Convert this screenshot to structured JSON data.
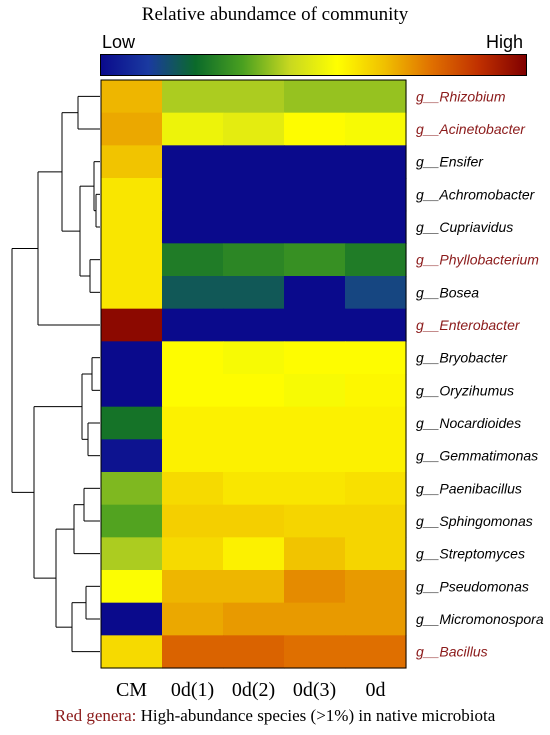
{
  "chart_data": {
    "type": "heatmap",
    "title": "Relative abundamce of community",
    "color_scale": {
      "low_label": "Low",
      "high_label": "High",
      "stops": [
        "#0a0a8c",
        "#1a3aa0",
        "#0b6a2a",
        "#4aa020",
        "#c8d820",
        "#ffff00",
        "#f0c000",
        "#e07000",
        "#c03000",
        "#800000"
      ]
    },
    "columns": [
      "CM",
      "0d(1)",
      "0d(2)",
      "0d(3)",
      "0d"
    ],
    "rows": [
      {
        "genus": "g__Rhizobium",
        "highlight": true,
        "values": [
          0.68,
          0.42,
          0.42,
          0.4,
          0.4
        ]
      },
      {
        "genus": "g__Acinetobacter",
        "highlight": true,
        "values": [
          0.7,
          0.52,
          0.5,
          0.56,
          0.54
        ]
      },
      {
        "genus": "g__Ensifer",
        "highlight": false,
        "values": [
          0.66,
          0.0,
          0.0,
          0.0,
          0.0
        ]
      },
      {
        "genus": "g__Achromobacter",
        "highlight": false,
        "values": [
          0.6,
          0.0,
          0.0,
          0.0,
          0.0
        ]
      },
      {
        "genus": "g__Cupriavidus",
        "highlight": false,
        "values": [
          0.6,
          0.0,
          0.0,
          0.0,
          0.0
        ]
      },
      {
        "genus": "g__Phyllobacterium",
        "highlight": true,
        "values": [
          0.6,
          0.26,
          0.28,
          0.3,
          0.26
        ]
      },
      {
        "genus": "g__Bosea",
        "highlight": false,
        "values": [
          0.6,
          0.18,
          0.18,
          0.0,
          0.14
        ]
      },
      {
        "genus": "g__Enterobacter",
        "highlight": true,
        "values": [
          0.98,
          0.0,
          0.0,
          0.0,
          0.0
        ]
      },
      {
        "genus": "g__Bryobacter",
        "highlight": false,
        "values": [
          0.0,
          0.56,
          0.54,
          0.56,
          0.56
        ]
      },
      {
        "genus": "g__Oryzihumus",
        "highlight": false,
        "values": [
          0.0,
          0.56,
          0.56,
          0.54,
          0.57
        ]
      },
      {
        "genus": "g__Nocardioides",
        "highlight": false,
        "values": [
          0.24,
          0.58,
          0.58,
          0.58,
          0.58
        ]
      },
      {
        "genus": "g__Gemmatimonas",
        "highlight": false,
        "values": [
          0.02,
          0.58,
          0.58,
          0.58,
          0.58
        ]
      },
      {
        "genus": "g__Paenibacillus",
        "highlight": false,
        "values": [
          0.38,
          0.62,
          0.6,
          0.6,
          0.61
        ]
      },
      {
        "genus": "g__Sphingomonas",
        "highlight": false,
        "values": [
          0.34,
          0.64,
          0.64,
          0.63,
          0.63
        ]
      },
      {
        "genus": "g__Streptomyces",
        "highlight": false,
        "values": [
          0.42,
          0.62,
          0.58,
          0.66,
          0.63
        ]
      },
      {
        "genus": "g__Pseudomonas",
        "highlight": false,
        "values": [
          0.55,
          0.68,
          0.68,
          0.74,
          0.72
        ]
      },
      {
        "genus": "g__Micromonospora",
        "highlight": false,
        "values": [
          0.0,
          0.7,
          0.72,
          0.72,
          0.72
        ]
      },
      {
        "genus": "g__Bacillus",
        "highlight": true,
        "values": [
          0.62,
          0.8,
          0.8,
          0.78,
          0.78
        ]
      }
    ],
    "row_dendrogram": true,
    "legend_position": "top"
  },
  "note": {
    "prefix": "Red genera:",
    "text": " High-abundance species (>1%) in native microbiota"
  },
  "colors": {
    "highlight_label": "#8b1a1a",
    "normal_label": "#000000"
  }
}
